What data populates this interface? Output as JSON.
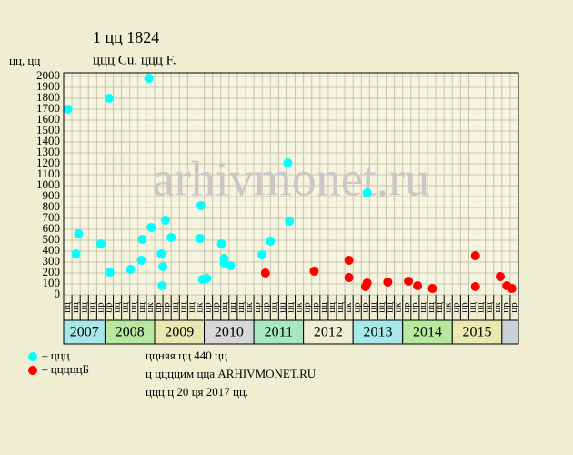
{
  "chart_data": {
    "type": "scatter",
    "title": "1 цц 1824",
    "subtitle": "ццц Cu, ццц F.",
    "y_label": "цц, цц",
    "watermark": "arhivmonet.ru",
    "categories": [
      "цц",
      "цц",
      "цц",
      "цц",
      "цр",
      "цр",
      "цц",
      "цц",
      "цц",
      "цц",
      "цк",
      "цр",
      "цр",
      "цц",
      "цц",
      "цц",
      "цк",
      "цр",
      "цр",
      "цц",
      "цц",
      "цц",
      "цк",
      "цр",
      "цр",
      "цц",
      "цц",
      "цц",
      "цк",
      "цр",
      "цр",
      "цц",
      "цц",
      "цц",
      "цк",
      "цр",
      "цр",
      "цц",
      "цц",
      "цц",
      "цк",
      "цр",
      "цр",
      "цц",
      "цц",
      "цц",
      "цк",
      "цр",
      "цр",
      "цц",
      "цц",
      "цц",
      "цк",
      "цр",
      "цр"
    ],
    "years": [
      {
        "label": "2007",
        "color": "#a8e8e8"
      },
      {
        "label": "2008",
        "color": "#b8e8a0"
      },
      {
        "label": "2009",
        "color": "#e8e8b0"
      },
      {
        "label": "2010",
        "color": "#d8d8d8"
      },
      {
        "label": "2011",
        "color": "#a8e8c0"
      },
      {
        "label": "2012",
        "color": "#f0eed2"
      },
      {
        "label": "2013",
        "color": "#a8e8e8"
      },
      {
        "label": "2014",
        "color": "#b8e8a0"
      },
      {
        "label": "2015",
        "color": "#e8e8b0"
      }
    ],
    "xlim": [
      0,
      55
    ],
    "ylim": [
      0,
      2000
    ],
    "yticks": [
      0,
      100,
      200,
      300,
      400,
      500,
      600,
      700,
      800,
      900,
      1000,
      1100,
      1200,
      1300,
      1400,
      1500,
      1600,
      1700,
      1800,
      1900,
      2000
    ],
    "grid": true,
    "series": [
      {
        "name": "– ццц",
        "color": "#00ffff",
        "x": [
          0.5,
          1.5,
          1.8,
          4.5,
          5.5,
          5.6,
          8.1,
          9.4,
          9.5,
          10.3,
          10.6,
          11.8,
          11.9,
          12.0,
          12.3,
          13.0,
          16.6,
          16.5,
          16.8,
          17.3,
          19.1,
          19.4,
          19.4,
          20.2,
          24.0,
          25.0,
          27.1,
          27.3,
          36.7
        ],
        "values": [
          1700,
          375,
          558,
          467,
          1800,
          208,
          233,
          317,
          508,
          1983,
          617,
          375,
          83,
          258,
          683,
          525,
          817,
          517,
          142,
          150,
          467,
          333,
          292,
          267,
          367,
          492,
          1208,
          675,
          933
        ]
      },
      {
        "name": "– цццццБ",
        "color": "#ff0000",
        "x": [
          24.4,
          30.3,
          34.5,
          34.5,
          36.5,
          36.7,
          39.2,
          41.7,
          42.8,
          44.6,
          49.8,
          49.8,
          52.8,
          53.6,
          54.2
        ],
        "values": [
          200,
          217,
          317,
          158,
          75,
          108,
          117,
          125,
          83,
          58,
          75,
          358,
          167,
          83,
          58
        ]
      }
    ],
    "notes": [
      "ццняя цц 440 цц",
      "ц ццццим цца ARHIVMONET.RU",
      "ццц ц 20 ця 2017 цц."
    ]
  }
}
